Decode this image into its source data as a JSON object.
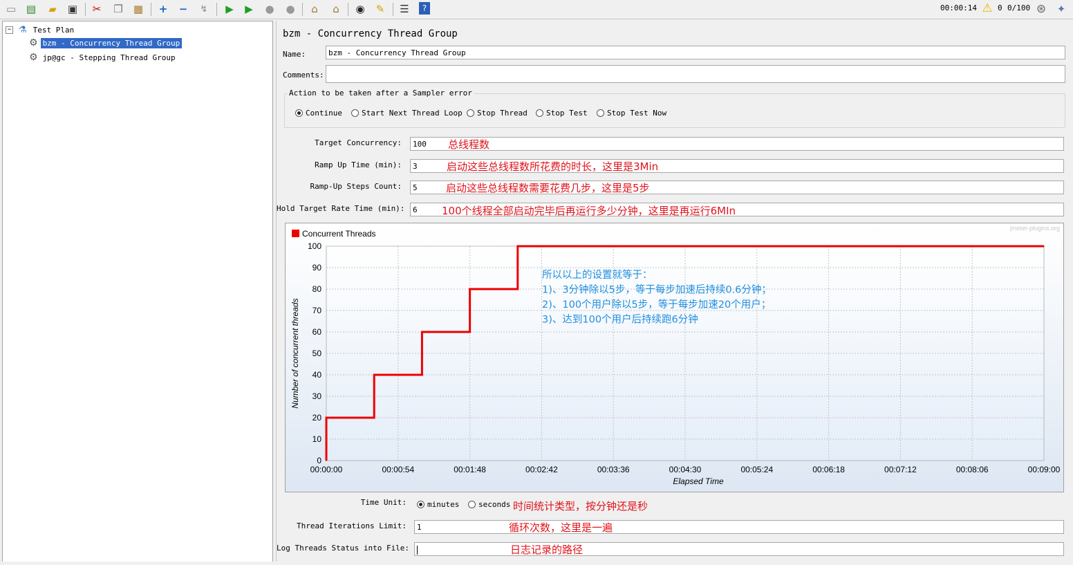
{
  "status": {
    "elapsed": "00:00:14",
    "warnings": "0",
    "threads": "0/100"
  },
  "tree": {
    "root": "Test Plan",
    "items": [
      {
        "label": "bzm - Concurrency Thread Group",
        "selected": true
      },
      {
        "label": "jp@gc - Stepping Thread Group",
        "selected": false
      }
    ]
  },
  "panel": {
    "title": "bzm - Concurrency Thread Group",
    "name_label": "Name:",
    "name_value": "bzm - Concurrency Thread Group",
    "comments_label": "Comments:",
    "comments_value": "",
    "error_action": {
      "legend": "Action to be taken after a Sampler error",
      "options": [
        "Continue",
        "Start Next Thread Loop",
        "Stop Thread",
        "Stop Test",
        "Stop Test Now"
      ],
      "selected": "Continue"
    },
    "fields": [
      {
        "label": "Target Concurrency:",
        "value": "100",
        "note": "总线程数"
      },
      {
        "label": "Ramp Up Time (min):",
        "value": "3",
        "note": "启动这些总线程数所花费的时长，这里是3Min"
      },
      {
        "label": "Ramp-Up Steps Count:",
        "value": "5",
        "note": "启动这些总线程数需要花费几步，这里是5步"
      },
      {
        "label": "Hold Target Rate Time (min):",
        "value": "6",
        "note": "100个线程全部启动完毕后再运行多少分钟，这里是再运行6MIn"
      }
    ],
    "time_unit": {
      "label": "Time Unit:",
      "options": [
        "minutes",
        "seconds"
      ],
      "selected": "minutes",
      "note": "时间统计类型，按分钟还是秒"
    },
    "iterations": {
      "label": "Thread Iterations Limit:",
      "value": "1",
      "note": "循环次数，这里是一遍"
    },
    "log_file": {
      "label": "Log Threads Status into File:",
      "value": "",
      "note": "日志记录的路径"
    }
  },
  "chart_data": {
    "type": "line",
    "watermark": "jmeter-plugins.org",
    "legend_position": "top-left",
    "xlabel": "Elapsed Time",
    "ylabel": "Number of concurrent threads",
    "x_ticks": [
      "00:00:00",
      "00:00:54",
      "00:01:48",
      "00:02:42",
      "00:03:36",
      "00:04:30",
      "00:05:24",
      "00:06:18",
      "00:07:12",
      "00:08:06",
      "00:09:00"
    ],
    "y_ticks": [
      0,
      10,
      20,
      30,
      40,
      50,
      60,
      70,
      80,
      90,
      100
    ],
    "xlim": [
      0,
      540
    ],
    "ylim": [
      0,
      100
    ],
    "grid": true,
    "series": [
      {
        "name": "Concurrent Threads",
        "color": "#ee0000",
        "x": [
          0,
          0,
          36,
          36,
          72,
          72,
          108,
          108,
          144,
          144,
          540
        ],
        "y": [
          0,
          20,
          20,
          40,
          40,
          60,
          60,
          80,
          80,
          100,
          100
        ]
      }
    ],
    "annotation_lines": [
      "所以以上的设置就等于：",
      "1)、3分钟除以5步，等于每步加速后持续0.6分钟；",
      "2)、100个用户除以5步，等于每步加速20个用户；",
      "3)、达到100个用户后持续跑6分钟"
    ]
  }
}
